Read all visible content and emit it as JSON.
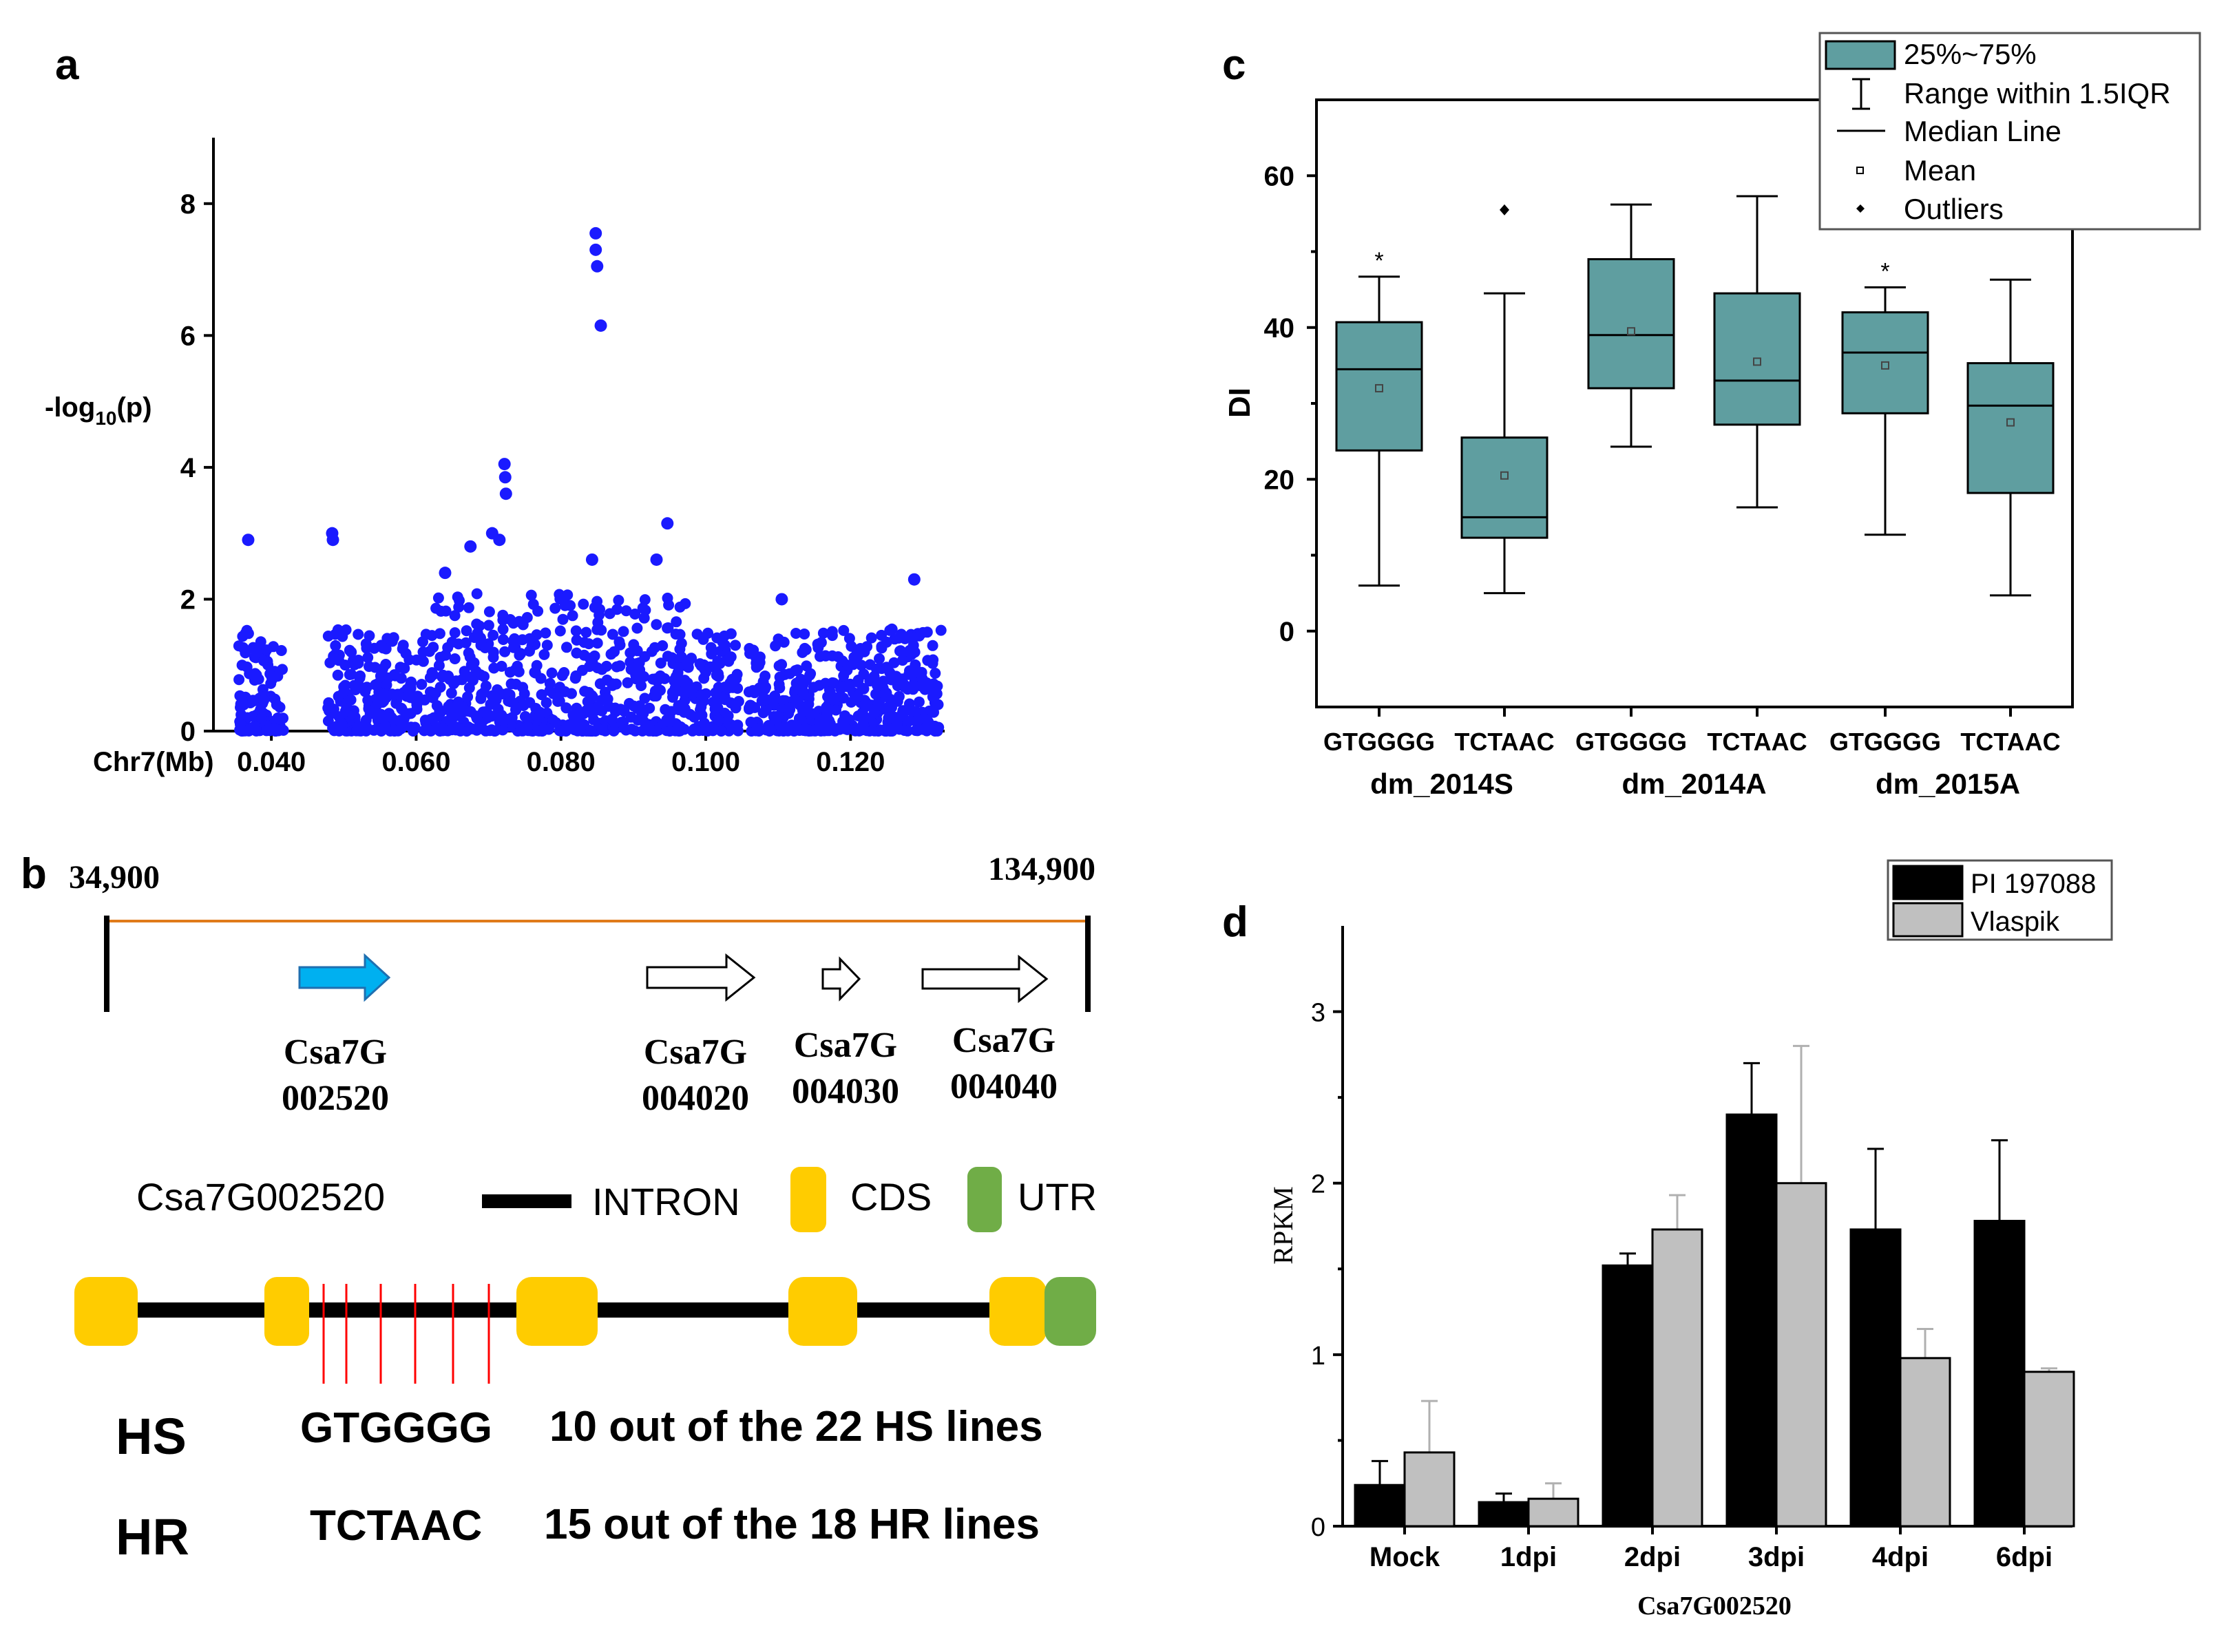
{
  "panel_labels": {
    "a": "a",
    "b": "b",
    "c": "c",
    "d": "d"
  },
  "colors": {
    "manhattan": "#1a1aff",
    "box": "#5f9ea0",
    "pi": "#000000",
    "vlaspik": "#c0c0c0",
    "cds": "#ffcc00",
    "utr": "#70ad47",
    "arrow_blue": "#00b0f0",
    "line_orange": "#e07b1a",
    "snp": "#ff0000"
  },
  "chart_data": [
    {
      "id": "a",
      "type": "scatter",
      "title": "",
      "ylabel_prefix": "-log",
      "ylabel_sub": "10",
      "ylabel_suffix": "(p)",
      "xlabel": "Chr7(Mb)",
      "xlim": [
        0.032,
        0.133
      ],
      "ylim": [
        0,
        9
      ],
      "xticks": [
        0.04,
        0.06,
        0.08,
        0.1,
        0.12
      ],
      "xtick_labels": [
        "0.040",
        "0.060",
        "0.080",
        "0.100",
        "0.120"
      ],
      "yticks": [
        0,
        2,
        4,
        6,
        8
      ],
      "highlight_points": [
        {
          "x": 0.0848,
          "y": 7.55
        },
        {
          "x": 0.0848,
          "y": 7.3
        },
        {
          "x": 0.085,
          "y": 7.05
        },
        {
          "x": 0.0855,
          "y": 6.15
        },
        {
          "x": 0.0722,
          "y": 4.05
        },
        {
          "x": 0.0723,
          "y": 3.85
        },
        {
          "x": 0.0724,
          "y": 3.6
        },
        {
          "x": 0.0947,
          "y": 3.15
        },
        {
          "x": 0.0368,
          "y": 2.9
        },
        {
          "x": 0.0484,
          "y": 3.0
        },
        {
          "x": 0.0485,
          "y": 2.9
        },
        {
          "x": 0.0843,
          "y": 2.6
        },
        {
          "x": 0.0932,
          "y": 2.6
        },
        {
          "x": 0.1288,
          "y": 2.3
        },
        {
          "x": 0.0675,
          "y": 2.8
        },
        {
          "x": 0.0705,
          "y": 3.0
        },
        {
          "x": 0.0715,
          "y": 2.9
        },
        {
          "x": 0.064,
          "y": 2.4
        },
        {
          "x": 0.1105,
          "y": 2.0
        }
      ],
      "background_points_note": "dense cloud of SNPs 0-2.5"
    },
    {
      "id": "c",
      "type": "box",
      "ylabel": "DI",
      "ylim": [
        -10,
        70
      ],
      "yticks": [
        0,
        20,
        40,
        60
      ],
      "categories": [
        "GTGGGG",
        "TCTAAC",
        "GTGGGG",
        "TCTAAC",
        "GTGGGG",
        "TCTAAC"
      ],
      "groups": [
        "dm_2014S",
        "dm_2014A",
        "dm_2015A"
      ],
      "boxes": [
        {
          "q1": 23.8,
          "median": 34.5,
          "q3": 40.7,
          "mean": 32,
          "whisker_low": 6,
          "whisker_high": 46.7,
          "star": "*",
          "outlier": null
        },
        {
          "q1": 12.3,
          "median": 15,
          "q3": 25.5,
          "mean": 20.5,
          "whisker_low": 5,
          "whisker_high": 44.5,
          "star": null,
          "outlier": 55.5
        },
        {
          "q1": 32,
          "median": 39,
          "q3": 49,
          "mean": 39.5,
          "whisker_low": 24.3,
          "whisker_high": 56.2,
          "star": null,
          "outlier": null
        },
        {
          "q1": 27.2,
          "median": 33,
          "q3": 44.5,
          "mean": 35.5,
          "whisker_low": 16.3,
          "whisker_high": 57.3,
          "star": null,
          "outlier": null
        },
        {
          "q1": 28.7,
          "median": 36.7,
          "q3": 42,
          "mean": 35,
          "whisker_low": 12.7,
          "whisker_high": 45.3,
          "star": "*",
          "outlier": null
        },
        {
          "q1": 18.2,
          "median": 29.7,
          "q3": 35.3,
          "mean": 27.5,
          "whisker_low": 4.7,
          "whisker_high": 46.3,
          "star": null,
          "outlier": null
        }
      ],
      "legend": [
        "25%~75%",
        "Range within 1.5IQR",
        "Median Line",
        "Mean",
        "Outliers"
      ]
    },
    {
      "id": "d",
      "type": "bar",
      "ylabel": "RPKM",
      "xlabel": "Csa7G002520",
      "ylim": [
        0,
        3.5
      ],
      "yticks": [
        0,
        1,
        2,
        3
      ],
      "categories": [
        "Mock",
        "1dpi",
        "2dpi",
        "3dpi",
        "4dpi",
        "6dpi"
      ],
      "series": [
        {
          "name": "PI 197088",
          "values": [
            0.24,
            0.14,
            1.52,
            2.4,
            1.73,
            1.78
          ],
          "errors": [
            0.14,
            0.05,
            0.07,
            0.3,
            0.47,
            0.47
          ]
        },
        {
          "name": "Vlaspik",
          "values": [
            0.43,
            0.16,
            1.73,
            2.0,
            0.98,
            0.9
          ],
          "errors": [
            0.3,
            0.09,
            0.2,
            0.8,
            0.17,
            0.02
          ]
        }
      ]
    }
  ],
  "panel_b": {
    "start": "34,900",
    "end": "134,900",
    "genes": [
      {
        "l1": "Csa7G",
        "l2": "002520"
      },
      {
        "l1": "Csa7G",
        "l2": "004020"
      },
      {
        "l1": "Csa7G",
        "l2": "004030"
      },
      {
        "l1": "Csa7G",
        "l2": "004040"
      }
    ],
    "legend_gene": "Csa7G002520",
    "legend_intron": "INTRON",
    "legend_cds": "CDS",
    "legend_utr": "UTR",
    "hs_label": "HS",
    "hr_label": "HR",
    "hs_hap": "GTGGGG",
    "hr_hap": "TCTAAC",
    "hs_text": "10 out of the 22 HS lines",
    "hr_text": "15 out of the 18 HR lines"
  }
}
